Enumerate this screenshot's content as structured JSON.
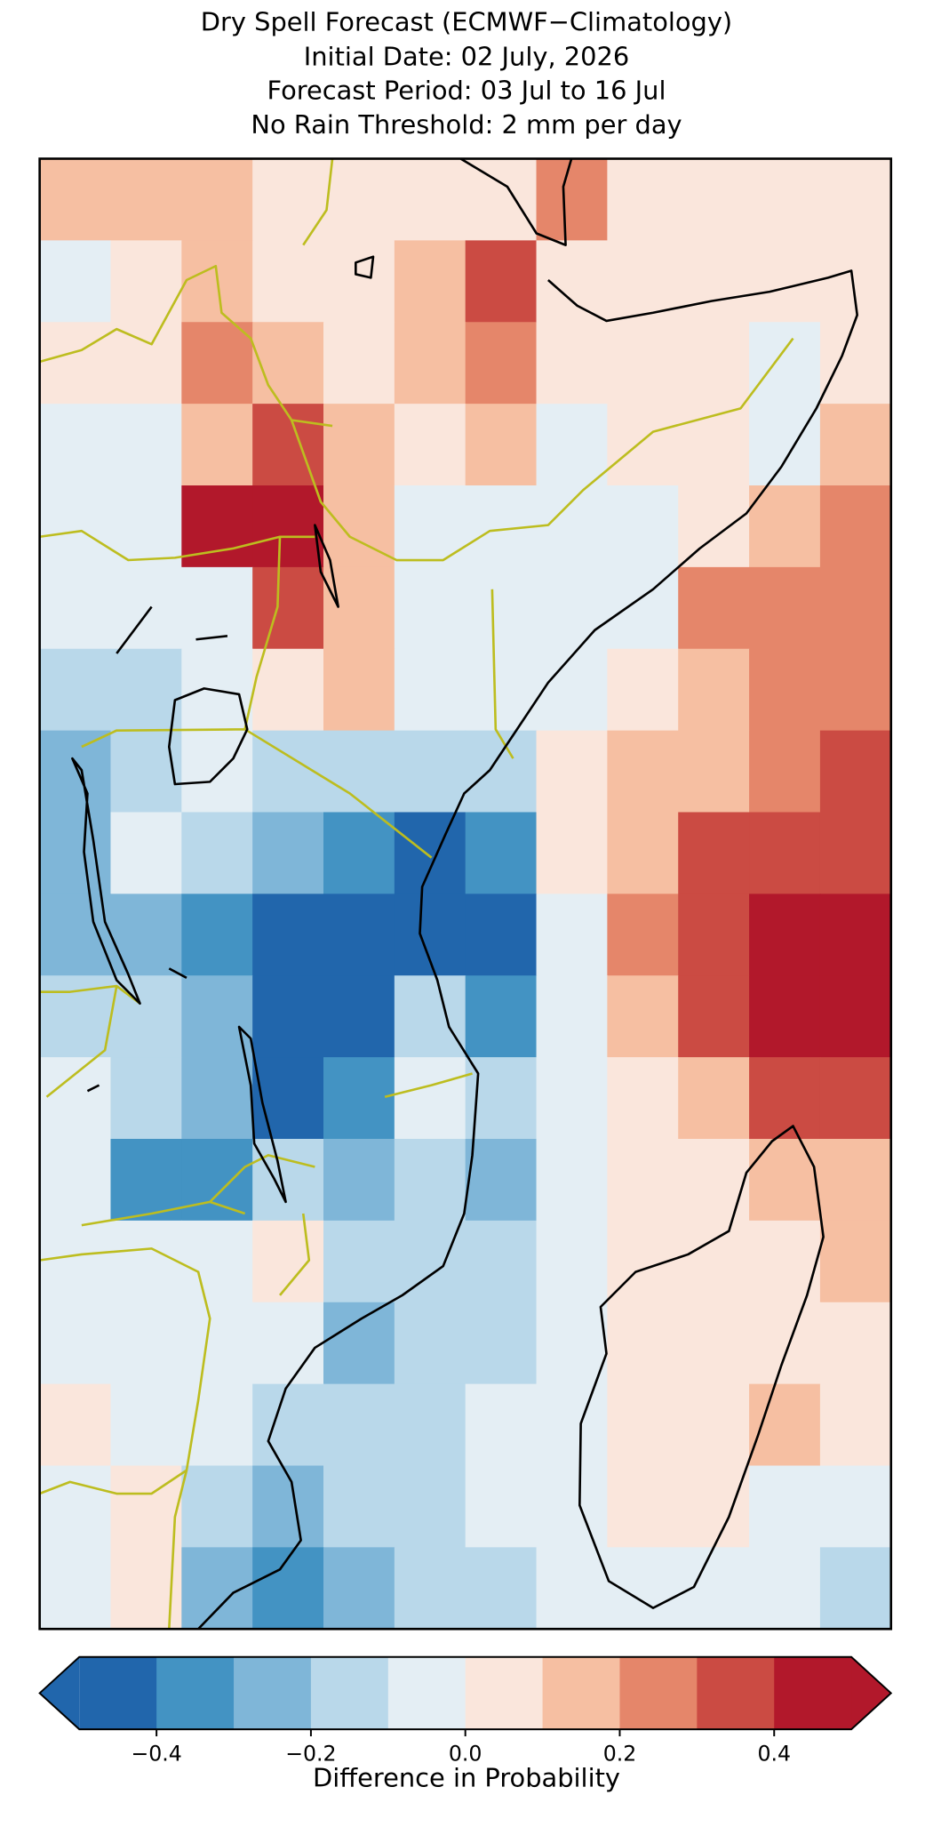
{
  "chart_data": {
    "type": "heatmap",
    "title": [
      "Dry Spell Forecast (ECMWF−Climatology)",
      "Initial Date: 02 July, 2026",
      "Forecast Period: 03 Jul to 16 Jul",
      "No Rain Threshold: 2 mm per day"
    ],
    "colorbar_label": "Difference in Probability",
    "levels": [
      -0.5,
      -0.4,
      -0.3,
      -0.2,
      -0.1,
      0,
      0.1,
      0.2,
      0.3,
      0.4,
      0.5
    ],
    "colors": [
      "#2166ac",
      "#4393c3",
      "#7fb6d8",
      "#b9d8ea",
      "#e4eef4",
      "#fae6dc",
      "#f6bfa2",
      "#e5866a",
      "#cb4b43",
      "#b2182b"
    ],
    "colorbar_ticks": [
      {
        "value": -0.4,
        "label": "−0.4"
      },
      {
        "value": -0.2,
        "label": "−0.2"
      },
      {
        "value": 0,
        "label": "0.0"
      },
      0.2,
      0.4
    ],
    "values": [
      [
        0.15,
        0.15,
        0.15,
        0.05,
        0.05,
        0.05,
        0.05,
        0.25,
        0.05,
        0.05,
        0.05,
        0.05
      ],
      [
        -0.05,
        0.05,
        0.15,
        0.05,
        0.05,
        0.15,
        0.35,
        0.05,
        0.05,
        0.05,
        0.05,
        0.05
      ],
      [
        0.05,
        0.05,
        0.25,
        0.15,
        0.05,
        0.15,
        0.25,
        0.05,
        0.05,
        0.05,
        -0.05,
        0.05
      ],
      [
        -0.05,
        -0.05,
        0.15,
        0.35,
        0.15,
        0.05,
        0.15,
        -0.05,
        0.05,
        0.05,
        -0.05,
        0.15
      ],
      [
        -0.05,
        -0.05,
        0.45,
        0.45,
        0.15,
        -0.05,
        -0.05,
        -0.05,
        -0.05,
        0.05,
        0.15,
        0.25
      ],
      [
        -0.05,
        -0.05,
        -0.05,
        0.35,
        0.15,
        -0.05,
        -0.05,
        -0.05,
        -0.05,
        0.25,
        0.25,
        0.25
      ],
      [
        -0.15,
        -0.15,
        -0.05,
        0.05,
        0.15,
        -0.05,
        -0.05,
        -0.05,
        0.05,
        0.15,
        0.25,
        0.25
      ],
      [
        -0.25,
        -0.15,
        -0.05,
        -0.15,
        -0.15,
        -0.15,
        -0.15,
        0.05,
        0.15,
        0.15,
        0.25,
        0.35
      ],
      [
        -0.25,
        -0.05,
        -0.15,
        -0.25,
        -0.35,
        -0.45,
        -0.35,
        0.05,
        0.15,
        0.35,
        0.35,
        0.35
      ],
      [
        -0.25,
        -0.25,
        -0.35,
        -0.45,
        -0.45,
        -0.45,
        -0.45,
        -0.05,
        0.25,
        0.35,
        0.45,
        0.45
      ],
      [
        -0.15,
        -0.15,
        -0.25,
        -0.45,
        -0.45,
        -0.15,
        -0.35,
        -0.05,
        0.15,
        0.35,
        0.45,
        0.45
      ],
      [
        -0.05,
        -0.15,
        -0.25,
        -0.45,
        -0.35,
        -0.05,
        -0.15,
        -0.05,
        0.05,
        0.15,
        0.35,
        0.35
      ],
      [
        -0.05,
        -0.35,
        -0.35,
        -0.15,
        -0.25,
        -0.15,
        -0.25,
        -0.05,
        0.05,
        0.05,
        0.15,
        0.15
      ],
      [
        -0.05,
        -0.05,
        -0.05,
        0.05,
        -0.15,
        -0.15,
        -0.15,
        -0.05,
        0.05,
        0.05,
        0.05,
        0.15
      ],
      [
        -0.05,
        -0.05,
        -0.05,
        -0.05,
        -0.25,
        -0.15,
        -0.15,
        -0.05,
        0.05,
        0.05,
        0.05,
        0.05
      ],
      [
        0.05,
        -0.05,
        -0.05,
        -0.15,
        -0.15,
        -0.15,
        -0.05,
        -0.05,
        0.05,
        0.05,
        0.15,
        0.05
      ],
      [
        -0.05,
        0.05,
        -0.15,
        -0.25,
        -0.15,
        -0.15,
        -0.05,
        -0.05,
        0.05,
        0.05,
        -0.05,
        -0.05
      ],
      [
        -0.05,
        0.05,
        -0.25,
        -0.35,
        -0.25,
        -0.15,
        -0.15,
        -0.05,
        -0.05,
        -0.05,
        -0.05,
        -0.15
      ]
    ]
  }
}
